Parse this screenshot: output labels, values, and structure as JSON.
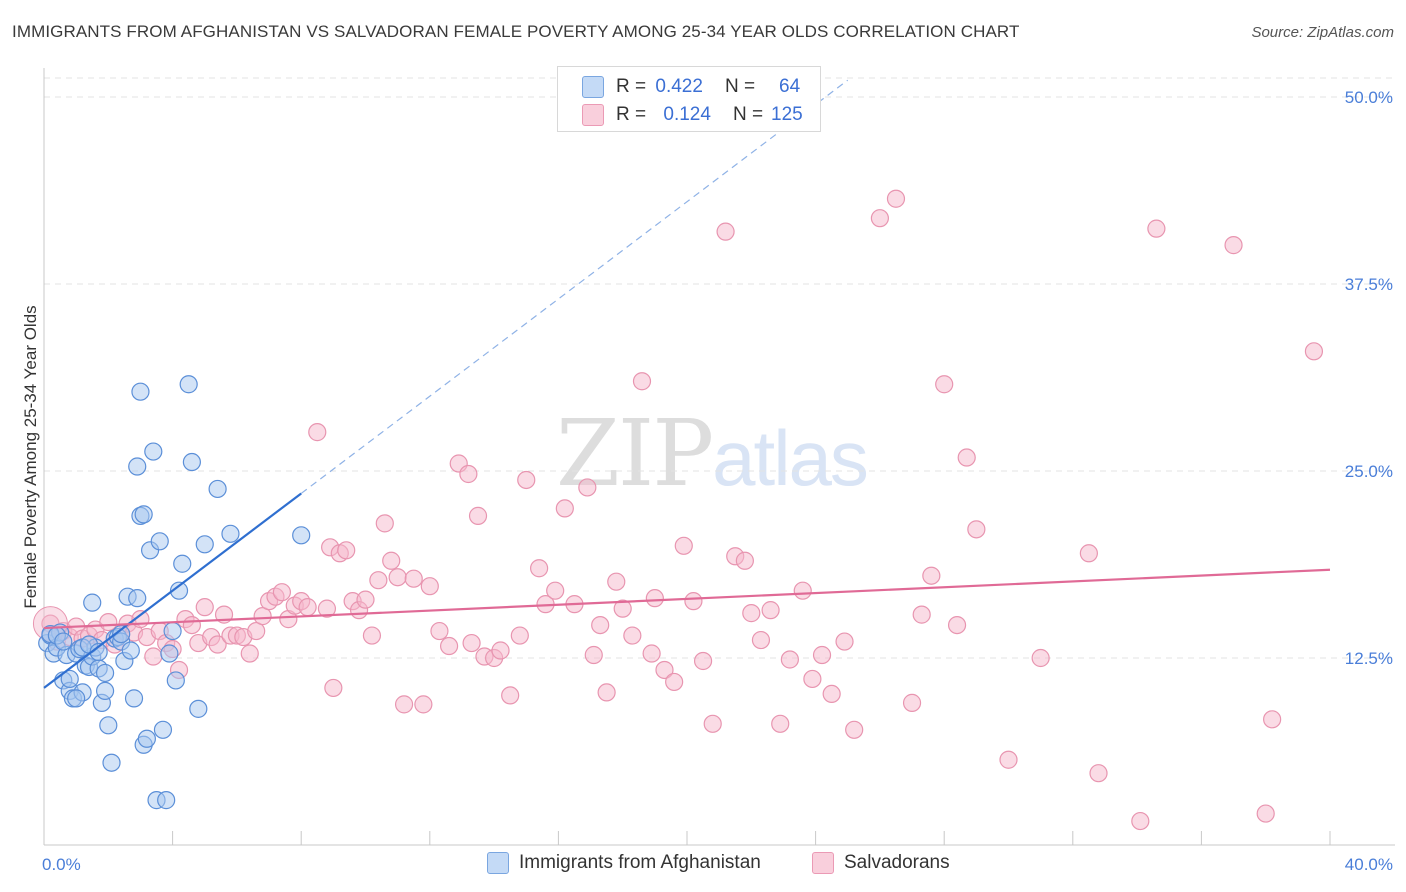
{
  "header": {
    "title": "IMMIGRANTS FROM AFGHANISTAN VS SALVADORAN FEMALE POVERTY AMONG 25-34 YEAR OLDS CORRELATION CHART",
    "source": "Source: ZipAtlas.com"
  },
  "watermark": {
    "zip": "ZIP",
    "atlas": "atlas"
  },
  "legend": {
    "rows": [
      {
        "r_label": "R =",
        "r_value": "0.422",
        "n_label": "N =",
        "n_value": "64",
        "color": "#a8c8f0"
      },
      {
        "r_label": "R =",
        "r_value": "0.124",
        "n_label": "N =",
        "n_value": "125",
        "color": "#f5b8cc"
      }
    ]
  },
  "bottom_legend": {
    "series1": "Immigrants from Afghanistan",
    "series2": "Salvadorans"
  },
  "colors": {
    "blue_fill": "#a8c8f0",
    "blue_stroke": "#5b8fd8",
    "blue_line": "#2f6fd0",
    "pink_fill": "#f5b8cc",
    "pink_stroke": "#e895b0",
    "pink_line": "#e06a96",
    "tick_text": "#4a7ed8",
    "grid": "#e3e3e3"
  },
  "chart_data": {
    "type": "scatter",
    "title": "IMMIGRANTS FROM AFGHANISTAN VS SALVADORAN FEMALE POVERTY AMONG 25-34 YEAR OLDS CORRELATION CHART",
    "xlabel": "",
    "ylabel": "Female Poverty Among 25-34 Year Olds",
    "xlim": [
      0,
      40
    ],
    "ylim": [
      0,
      50
    ],
    "x_tick_labels": [
      "0.0%",
      "40.0%"
    ],
    "y_ticks": [
      12.5,
      25.0,
      37.5,
      50.0
    ],
    "y_tick_labels": [
      "12.5%",
      "25.0%",
      "37.5%",
      "50.0%"
    ],
    "grid": true,
    "series": [
      {
        "name": "Immigrants from Afghanistan",
        "R": 0.422,
        "N": 64,
        "trend": {
          "x0": 0,
          "y0": 10.5,
          "x1": 8,
          "y1": 23.5,
          "dashed_to_x": 25
        },
        "points": [
          [
            0.1,
            13.5
          ],
          [
            0.2,
            14.0
          ],
          [
            0.3,
            12.8
          ],
          [
            0.4,
            13.2
          ],
          [
            0.5,
            14.2
          ],
          [
            0.6,
            11.0
          ],
          [
            0.7,
            12.7
          ],
          [
            0.8,
            10.3
          ],
          [
            0.9,
            9.8
          ],
          [
            1.0,
            12.8
          ],
          [
            1.1,
            13.1
          ],
          [
            1.2,
            10.2
          ],
          [
            1.3,
            12.0
          ],
          [
            1.4,
            11.9
          ],
          [
            1.5,
            12.6
          ],
          [
            1.6,
            13.2
          ],
          [
            1.7,
            11.8
          ],
          [
            1.8,
            9.5
          ],
          [
            1.9,
            11.5
          ],
          [
            2.0,
            8.0
          ],
          [
            2.1,
            5.5
          ],
          [
            2.2,
            13.8
          ],
          [
            2.3,
            13.9
          ],
          [
            2.4,
            13.6
          ],
          [
            2.5,
            12.3
          ],
          [
            2.6,
            16.6
          ],
          [
            2.7,
            13.0
          ],
          [
            2.8,
            9.8
          ],
          [
            2.9,
            16.5
          ],
          [
            3.0,
            22.0
          ],
          [
            3.1,
            6.7
          ],
          [
            3.2,
            7.1
          ],
          [
            3.3,
            19.7
          ],
          [
            3.4,
            26.3
          ],
          [
            3.5,
            3.0
          ],
          [
            3.6,
            20.3
          ],
          [
            3.7,
            7.7
          ],
          [
            3.8,
            3.0
          ],
          [
            3.9,
            12.8
          ],
          [
            4.0,
            14.3
          ],
          [
            4.1,
            11.0
          ],
          [
            4.2,
            17.0
          ],
          [
            4.3,
            18.8
          ],
          [
            4.5,
            30.8
          ],
          [
            4.6,
            25.6
          ],
          [
            4.8,
            9.1
          ],
          [
            5.0,
            20.1
          ],
          [
            5.4,
            23.8
          ],
          [
            5.8,
            20.8
          ],
          [
            8.0,
            20.7
          ],
          [
            0.2,
            14.1
          ],
          [
            0.4,
            14.0
          ],
          [
            0.6,
            13.6
          ],
          [
            0.8,
            11.1
          ],
          [
            1.0,
            9.8
          ],
          [
            1.2,
            13.2
          ],
          [
            1.4,
            13.4
          ],
          [
            1.5,
            16.2
          ],
          [
            1.7,
            12.9
          ],
          [
            1.9,
            10.3
          ],
          [
            2.4,
            14.1
          ],
          [
            2.9,
            25.3
          ],
          [
            3.1,
            22.1
          ],
          [
            3.0,
            30.3
          ]
        ]
      },
      {
        "name": "Salvadorans",
        "R": 0.124,
        "N": 125,
        "trend": {
          "x0": 0,
          "y0": 14.5,
          "x1": 40,
          "y1": 18.4
        },
        "points": [
          [
            0.2,
            14.8
          ],
          [
            0.4,
            13.6
          ],
          [
            0.6,
            14.3
          ],
          [
            0.8,
            13.9
          ],
          [
            1.0,
            14.6
          ],
          [
            1.2,
            13.8
          ],
          [
            1.4,
            14.0
          ],
          [
            1.6,
            14.4
          ],
          [
            1.8,
            13.7
          ],
          [
            2.0,
            14.9
          ],
          [
            2.2,
            13.4
          ],
          [
            2.4,
            14.1
          ],
          [
            2.6,
            14.8
          ],
          [
            2.8,
            14.2
          ],
          [
            3.0,
            15.1
          ],
          [
            3.2,
            13.9
          ],
          [
            3.4,
            12.6
          ],
          [
            3.6,
            14.3
          ],
          [
            3.8,
            13.5
          ],
          [
            4.0,
            13.1
          ],
          [
            4.2,
            11.7
          ],
          [
            4.4,
            15.1
          ],
          [
            4.6,
            14.7
          ],
          [
            4.8,
            13.5
          ],
          [
            5.0,
            15.9
          ],
          [
            5.2,
            13.9
          ],
          [
            5.4,
            13.4
          ],
          [
            5.6,
            15.4
          ],
          [
            5.8,
            14.0
          ],
          [
            6.0,
            14.0
          ],
          [
            6.2,
            13.9
          ],
          [
            6.4,
            12.8
          ],
          [
            6.6,
            14.3
          ],
          [
            6.8,
            15.3
          ],
          [
            7.0,
            16.3
          ],
          [
            7.2,
            16.6
          ],
          [
            7.4,
            16.9
          ],
          [
            7.6,
            15.1
          ],
          [
            7.8,
            16.0
          ],
          [
            8.0,
            16.3
          ],
          [
            8.2,
            15.9
          ],
          [
            8.5,
            27.6
          ],
          [
            8.8,
            15.8
          ],
          [
            8.9,
            19.9
          ],
          [
            9.0,
            10.5
          ],
          [
            9.2,
            19.5
          ],
          [
            9.4,
            19.7
          ],
          [
            9.6,
            16.3
          ],
          [
            9.8,
            15.7
          ],
          [
            10.0,
            16.4
          ],
          [
            10.2,
            14.0
          ],
          [
            10.4,
            17.7
          ],
          [
            10.6,
            21.5
          ],
          [
            10.8,
            19.0
          ],
          [
            11.0,
            17.9
          ],
          [
            11.2,
            9.4
          ],
          [
            11.5,
            17.8
          ],
          [
            11.8,
            9.4
          ],
          [
            12.0,
            17.3
          ],
          [
            12.3,
            14.3
          ],
          [
            12.6,
            13.3
          ],
          [
            12.9,
            25.5
          ],
          [
            13.2,
            24.8
          ],
          [
            13.3,
            13.5
          ],
          [
            13.5,
            22.0
          ],
          [
            13.7,
            12.6
          ],
          [
            14.0,
            12.5
          ],
          [
            14.2,
            13.0
          ],
          [
            14.5,
            10.0
          ],
          [
            14.8,
            14.0
          ],
          [
            15.0,
            24.4
          ],
          [
            15.4,
            18.5
          ],
          [
            15.6,
            16.1
          ],
          [
            15.9,
            17.0
          ],
          [
            16.2,
            22.5
          ],
          [
            16.5,
            16.1
          ],
          [
            16.9,
            23.9
          ],
          [
            17.1,
            12.7
          ],
          [
            17.3,
            14.7
          ],
          [
            17.5,
            10.2
          ],
          [
            17.8,
            17.6
          ],
          [
            18.0,
            15.8
          ],
          [
            18.3,
            14.0
          ],
          [
            18.6,
            31.0
          ],
          [
            18.9,
            12.8
          ],
          [
            19.0,
            16.5
          ],
          [
            19.3,
            11.7
          ],
          [
            19.6,
            10.9
          ],
          [
            19.9,
            20.0
          ],
          [
            20.2,
            16.3
          ],
          [
            20.5,
            12.3
          ],
          [
            20.8,
            8.1
          ],
          [
            21.2,
            41.0
          ],
          [
            21.5,
            19.3
          ],
          [
            21.8,
            19.0
          ],
          [
            22.0,
            15.5
          ],
          [
            22.3,
            13.7
          ],
          [
            22.6,
            15.7
          ],
          [
            22.9,
            8.1
          ],
          [
            23.2,
            12.4
          ],
          [
            23.6,
            17.0
          ],
          [
            23.9,
            11.1
          ],
          [
            24.2,
            12.7
          ],
          [
            24.5,
            10.1
          ],
          [
            24.9,
            13.6
          ],
          [
            25.2,
            7.7
          ],
          [
            26.0,
            41.9
          ],
          [
            26.5,
            43.2
          ],
          [
            27.0,
            9.5
          ],
          [
            27.3,
            15.4
          ],
          [
            27.6,
            18.0
          ],
          [
            28.0,
            30.8
          ],
          [
            28.4,
            14.7
          ],
          [
            28.7,
            25.9
          ],
          [
            29.0,
            21.1
          ],
          [
            30.0,
            5.7
          ],
          [
            31.0,
            12.5
          ],
          [
            32.5,
            19.5
          ],
          [
            32.8,
            4.8
          ],
          [
            34.1,
            1.6
          ],
          [
            34.6,
            41.2
          ],
          [
            37.0,
            40.1
          ],
          [
            38.0,
            2.1
          ],
          [
            38.2,
            8.4
          ],
          [
            39.5,
            33.0
          ]
        ]
      }
    ]
  }
}
